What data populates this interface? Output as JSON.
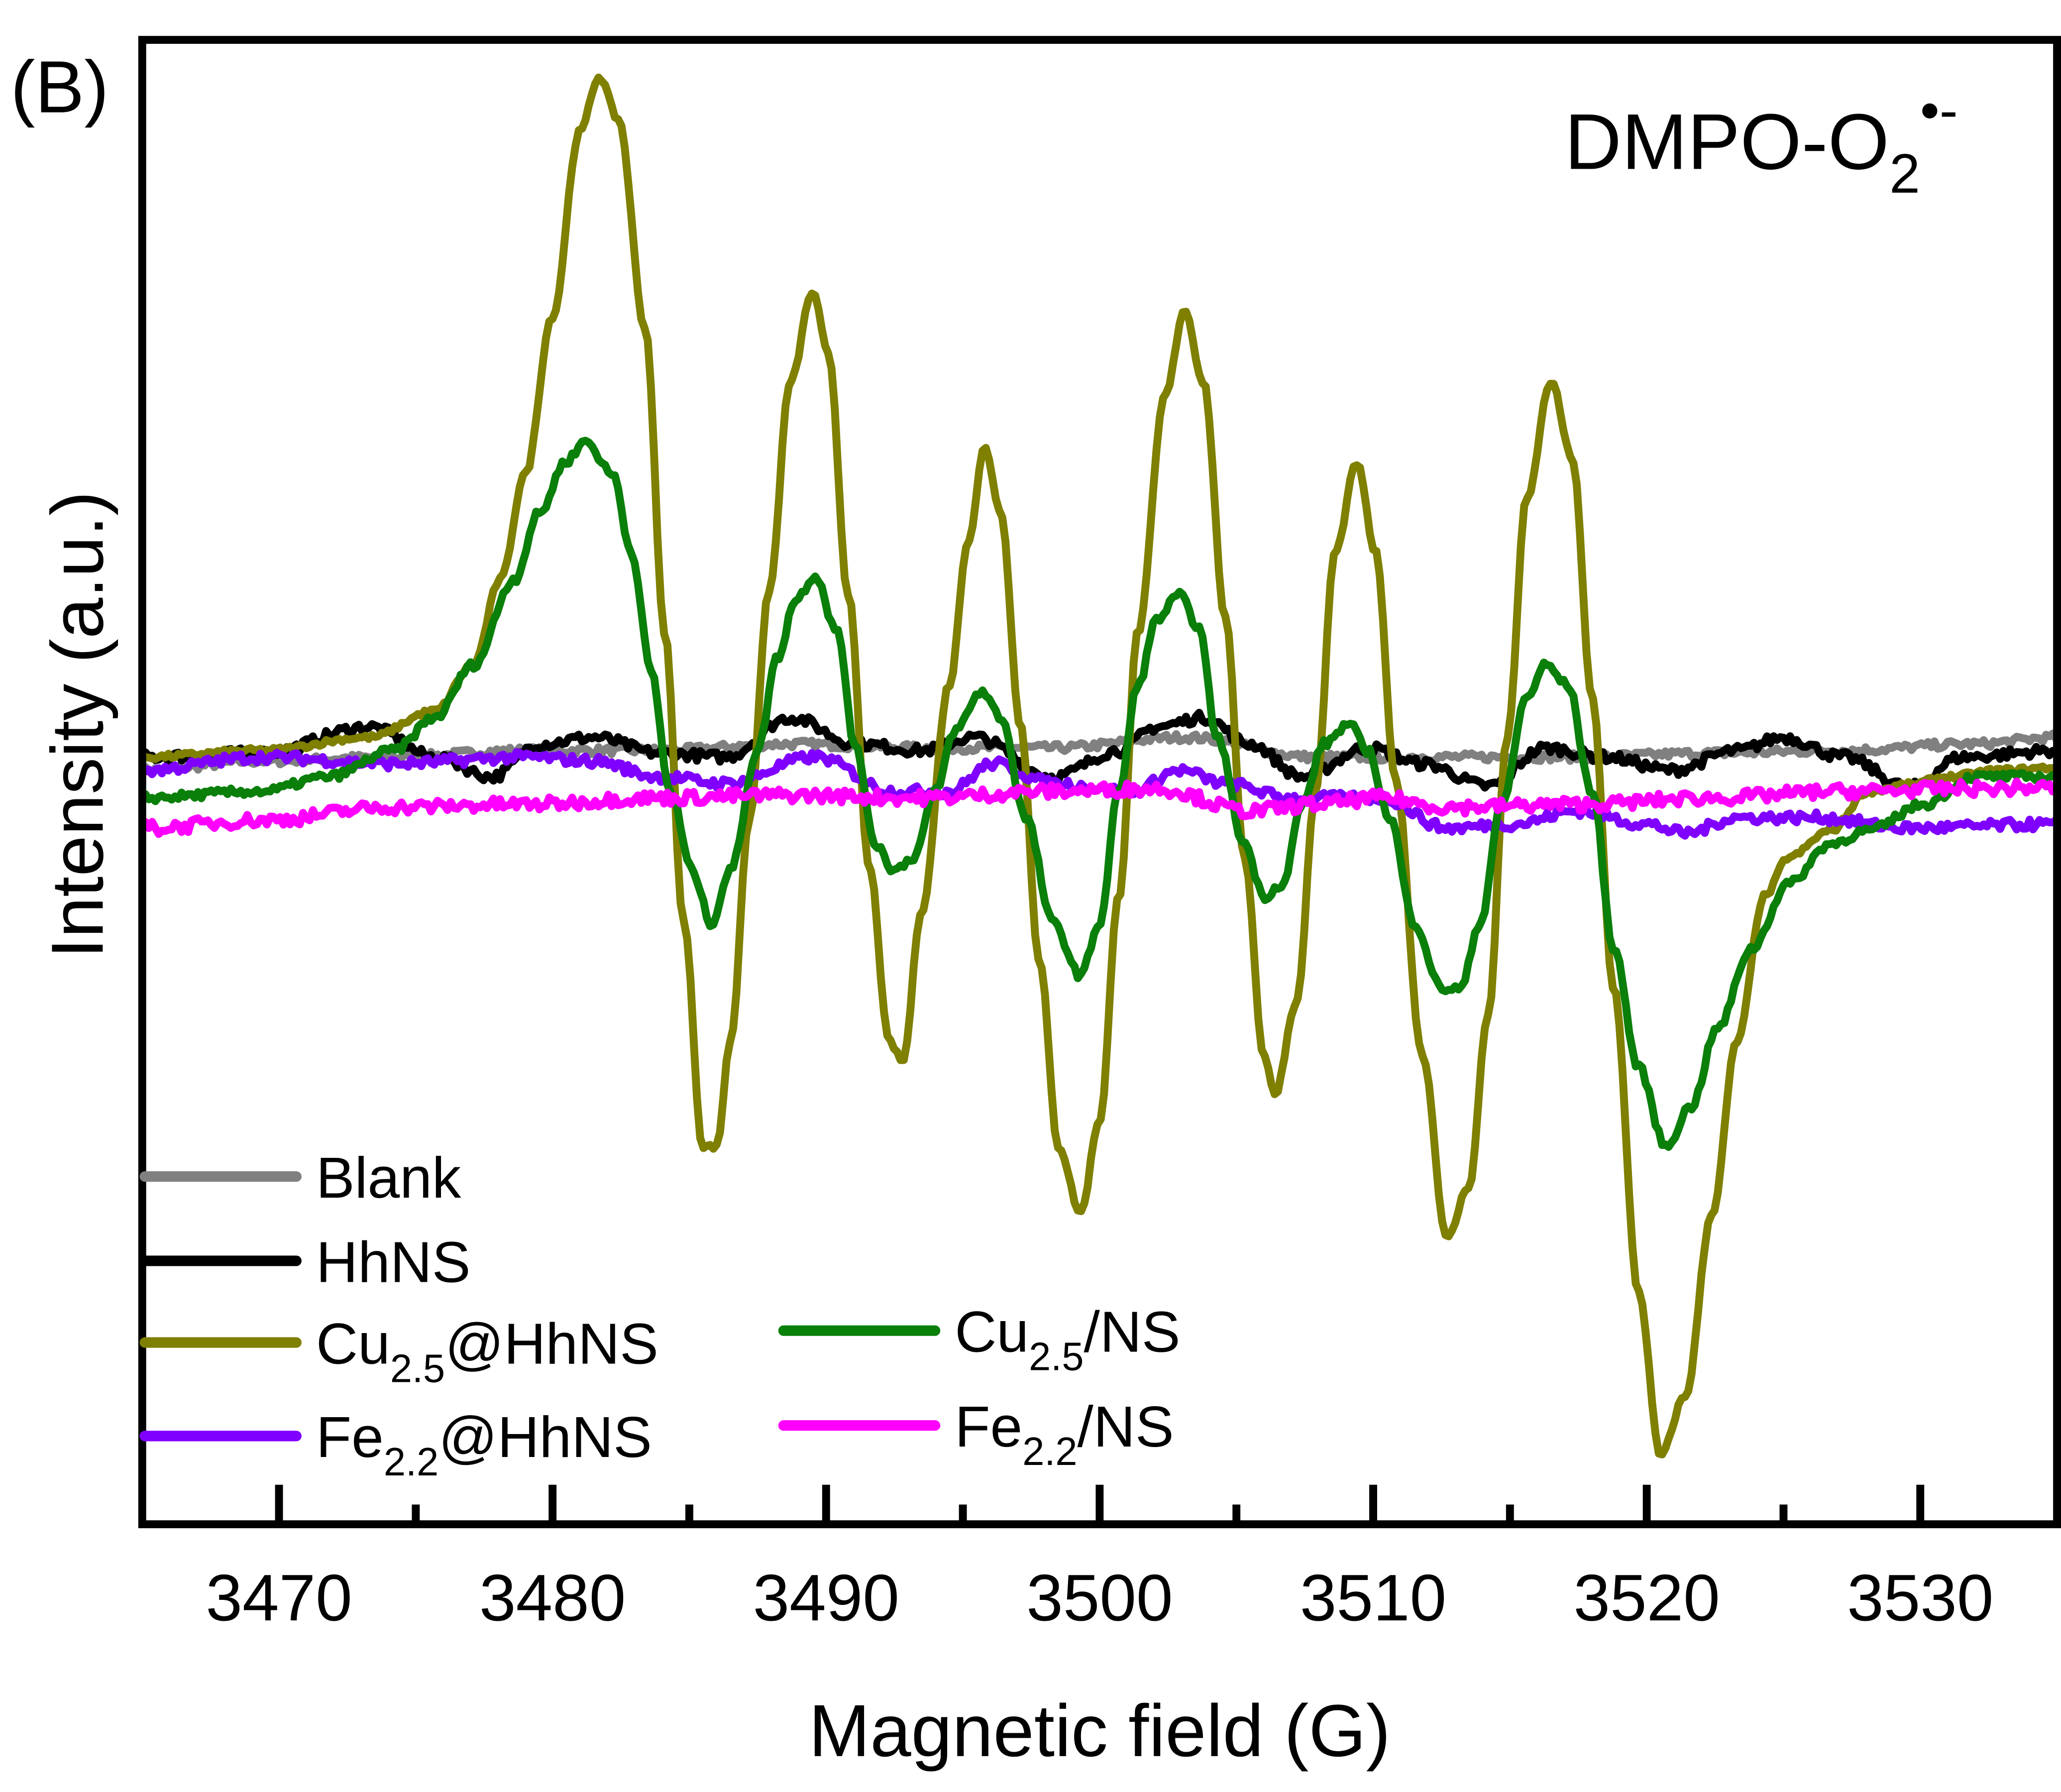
{
  "panel_label": "(B)",
  "chart_data": {
    "type": "line",
    "title": "",
    "annotation": {
      "main": "DMPO-O",
      "sub": "2",
      "sup": "•-"
    },
    "xlabel": "Magnetic field (G)",
    "ylabel": "Intensity (a.u.)",
    "xlim": [
      3465,
      3535
    ],
    "ylim": [
      -5.64,
      5.64
    ],
    "xticks": [
      3470,
      3480,
      3490,
      3500,
      3510,
      3520,
      3530
    ],
    "xtick_labels": [
      "3470",
      "3480",
      "3490",
      "3500",
      "3510",
      "3520",
      "3530"
    ],
    "minor_xticks": [
      3475,
      3485,
      3495,
      3505,
      3515,
      3525
    ],
    "yticks_shown": false,
    "grid": false,
    "legend_placement": "bottom-left",
    "series": [
      {
        "name": "Blank",
        "label": {
          "main": "Blank",
          "sub": "",
          "tail": ""
        },
        "color": "#808080",
        "noise": 0.03,
        "points": [
          [
            3465.0,
            0.09
          ],
          [
            3469.4,
            0.16
          ],
          [
            3474.2,
            0.19
          ],
          [
            3479.0,
            0.24
          ],
          [
            3483.8,
            0.24
          ],
          [
            3488.7,
            0.29
          ],
          [
            3493.5,
            0.26
          ],
          [
            3498.3,
            0.26
          ],
          [
            3503.1,
            0.34
          ],
          [
            3507.9,
            0.19
          ],
          [
            3512.7,
            0.19
          ],
          [
            3517.5,
            0.19
          ],
          [
            3522.4,
            0.22
          ],
          [
            3527.2,
            0.24
          ],
          [
            3532.0,
            0.29
          ],
          [
            3535.0,
            0.34
          ]
        ]
      },
      {
        "name": "HhNS",
        "label": {
          "main": "HhNS",
          "sub": "",
          "tail": ""
        },
        "color": "#000000",
        "noise": 0.04,
        "points": [
          [
            3465.0,
            0.19
          ],
          [
            3469.4,
            0.22
          ],
          [
            3473.3,
            0.42
          ],
          [
            3475.7,
            0.19
          ],
          [
            3477.8,
            0.04
          ],
          [
            3479.5,
            0.29
          ],
          [
            3481.5,
            0.34
          ],
          [
            3483.9,
            0.22
          ],
          [
            3486.3,
            0.19
          ],
          [
            3488.7,
            0.49
          ],
          [
            3491.1,
            0.29
          ],
          [
            3493.5,
            0.24
          ],
          [
            3495.4,
            0.34
          ],
          [
            3498.3,
            0.04
          ],
          [
            3500.7,
            0.24
          ],
          [
            3502.1,
            0.42
          ],
          [
            3503.8,
            0.49
          ],
          [
            3505.5,
            0.29
          ],
          [
            3507.4,
            0.04
          ],
          [
            3509.8,
            0.26
          ],
          [
            3511.8,
            0.14
          ],
          [
            3514.2,
            -0.03
          ],
          [
            3516.3,
            0.26
          ],
          [
            3518.5,
            0.19
          ],
          [
            3520.9,
            0.09
          ],
          [
            3523.3,
            0.24
          ],
          [
            3525.0,
            0.34
          ],
          [
            3527.2,
            0.19
          ],
          [
            3529.6,
            -0.04
          ],
          [
            3531.5,
            0.19
          ],
          [
            3535.0,
            0.24
          ]
        ]
      },
      {
        "name": "Cu2.5@HhNS",
        "label": {
          "main": "Cu",
          "sub": "2.5",
          "tail": "@HhNS"
        },
        "color": "#7f7f00",
        "noise": 0.02,
        "points": [
          [
            3465.0,
            0.19
          ],
          [
            3469.4,
            0.24
          ],
          [
            3473.3,
            0.34
          ],
          [
            3475.7,
            0.54
          ],
          [
            3477.1,
            0.89
          ],
          [
            3478.1,
            1.54
          ],
          [
            3479.0,
            2.34
          ],
          [
            3480.0,
            3.54
          ],
          [
            3481.0,
            4.94
          ],
          [
            3481.7,
            5.36
          ],
          [
            3482.4,
            5.04
          ],
          [
            3483.4,
            3.44
          ],
          [
            3484.1,
            1.14
          ],
          [
            3484.8,
            -1.07
          ],
          [
            3485.5,
            -2.77
          ],
          [
            3486.0,
            -2.77
          ],
          [
            3486.5,
            -1.97
          ],
          [
            3487.2,
            -0.27
          ],
          [
            3487.9,
            1.44
          ],
          [
            3488.7,
            3.04
          ],
          [
            3489.5,
            3.72
          ],
          [
            3490.1,
            3.24
          ],
          [
            3490.8,
            1.44
          ],
          [
            3491.6,
            -0.67
          ],
          [
            3492.3,
            -1.97
          ],
          [
            3492.8,
            -2.12
          ],
          [
            3493.5,
            -0.97
          ],
          [
            3494.5,
            0.74
          ],
          [
            3495.2,
            1.84
          ],
          [
            3495.8,
            2.54
          ],
          [
            3496.4,
            2.04
          ],
          [
            3497.1,
            0.44
          ],
          [
            3497.8,
            -1.37
          ],
          [
            3498.5,
            -2.77
          ],
          [
            3499.3,
            -3.27
          ],
          [
            3500.0,
            -2.57
          ],
          [
            3500.7,
            -0.87
          ],
          [
            3501.4,
            1.14
          ],
          [
            3502.4,
            2.94
          ],
          [
            3503.1,
            3.59
          ],
          [
            3503.8,
            3.04
          ],
          [
            3504.6,
            1.24
          ],
          [
            3505.3,
            -0.57
          ],
          [
            3506.0,
            -2.07
          ],
          [
            3506.4,
            -2.37
          ],
          [
            3507.2,
            -1.67
          ],
          [
            3507.9,
            -0.07
          ],
          [
            3508.6,
            1.74
          ],
          [
            3509.4,
            2.42
          ],
          [
            3510.1,
            1.74
          ],
          [
            3510.8,
            0.04
          ],
          [
            3511.8,
            -2.07
          ],
          [
            3512.7,
            -3.47
          ],
          [
            3513.5,
            -3.07
          ],
          [
            3514.2,
            -1.77
          ],
          [
            3514.9,
            0.34
          ],
          [
            3515.6,
            2.14
          ],
          [
            3516.5,
            3.04
          ],
          [
            3517.3,
            2.44
          ],
          [
            3518.0,
            0.64
          ],
          [
            3518.8,
            -1.57
          ],
          [
            3519.7,
            -3.87
          ],
          [
            3520.5,
            -5.12
          ],
          [
            3521.4,
            -4.67
          ],
          [
            3522.4,
            -3.27
          ],
          [
            3523.3,
            -1.97
          ],
          [
            3524.3,
            -0.87
          ],
          [
            3525.2,
            -0.57
          ],
          [
            3526.7,
            -0.37
          ],
          [
            3528.1,
            -0.07
          ],
          [
            3529.6,
            -0.02
          ],
          [
            3531.0,
            0.04
          ],
          [
            3533.0,
            0.09
          ],
          [
            3535.0,
            0.11
          ]
        ]
      },
      {
        "name": "Fe2.2@HhNS",
        "label": {
          "main": "Fe",
          "sub": "2.2",
          "tail": "@HhNS"
        },
        "color": "#8000ff",
        "noise": 0.04,
        "points": [
          [
            3465.0,
            0.09
          ],
          [
            3469.4,
            0.19
          ],
          [
            3474.2,
            0.14
          ],
          [
            3479.0,
            0.19
          ],
          [
            3481.5,
            0.16
          ],
          [
            3483.9,
            0.04
          ],
          [
            3486.3,
            -0.01
          ],
          [
            3489.6,
            0.19
          ],
          [
            3492.5,
            -0.07
          ],
          [
            3494.5,
            -0.07
          ],
          [
            3496.1,
            0.14
          ],
          [
            3498.3,
            -0.01
          ],
          [
            3501.2,
            -0.07
          ],
          [
            3502.9,
            0.09
          ],
          [
            3504.6,
            -0.01
          ],
          [
            3507.0,
            -0.12
          ],
          [
            3510.3,
            -0.12
          ],
          [
            3512.7,
            -0.35
          ],
          [
            3515.1,
            -0.32
          ],
          [
            3517.5,
            -0.22
          ],
          [
            3520.0,
            -0.32
          ],
          [
            3521.4,
            -0.39
          ],
          [
            3523.3,
            -0.27
          ],
          [
            3526.2,
            -0.27
          ],
          [
            3529.6,
            -0.35
          ],
          [
            3535.0,
            -0.32
          ]
        ]
      },
      {
        "name": "Cu2.5/NS",
        "label": {
          "main": "Cu",
          "sub": "2.5",
          "tail": "/NS"
        },
        "color": "#0a7f0a",
        "noise": 0.03,
        "points": [
          [
            3465.0,
            -0.12
          ],
          [
            3469.4,
            -0.07
          ],
          [
            3471.8,
            0.04
          ],
          [
            3474.2,
            0.24
          ],
          [
            3475.7,
            0.49
          ],
          [
            3477.1,
            0.89
          ],
          [
            3478.6,
            1.54
          ],
          [
            3479.5,
            2.04
          ],
          [
            3480.5,
            2.44
          ],
          [
            3481.2,
            2.59
          ],
          [
            3482.2,
            2.34
          ],
          [
            3482.9,
            1.74
          ],
          [
            3483.6,
            0.84
          ],
          [
            3484.3,
            -0.07
          ],
          [
            3485.1,
            -0.67
          ],
          [
            3485.8,
            -1.07
          ],
          [
            3486.5,
            -0.67
          ],
          [
            3487.5,
            0.24
          ],
          [
            3488.2,
            0.94
          ],
          [
            3488.9,
            1.39
          ],
          [
            3489.6,
            1.57
          ],
          [
            3490.4,
            1.14
          ],
          [
            3491.1,
            0.24
          ],
          [
            3491.8,
            -0.47
          ],
          [
            3492.5,
            -0.67
          ],
          [
            3493.2,
            -0.57
          ],
          [
            3494.0,
            -0.07
          ],
          [
            3494.7,
            0.39
          ],
          [
            3495.7,
            0.69
          ],
          [
            3496.4,
            0.49
          ],
          [
            3497.3,
            -0.27
          ],
          [
            3498.3,
            -1.07
          ],
          [
            3499.3,
            -1.47
          ],
          [
            3500.0,
            -1.07
          ],
          [
            3500.7,
            -0.07
          ],
          [
            3501.4,
            0.74
          ],
          [
            3502.1,
            1.24
          ],
          [
            3502.9,
            1.42
          ],
          [
            3503.6,
            1.19
          ],
          [
            3504.3,
            0.34
          ],
          [
            3505.3,
            -0.47
          ],
          [
            3506.0,
            -0.87
          ],
          [
            3506.7,
            -0.77
          ],
          [
            3507.4,
            -0.17
          ],
          [
            3508.2,
            0.29
          ],
          [
            3509.1,
            0.44
          ],
          [
            3509.8,
            0.24
          ],
          [
            3510.6,
            -0.27
          ],
          [
            3511.5,
            -1.07
          ],
          [
            3512.5,
            -1.57
          ],
          [
            3513.2,
            -1.57
          ],
          [
            3513.9,
            -1.07
          ],
          [
            3514.7,
            -0.17
          ],
          [
            3515.6,
            0.64
          ],
          [
            3516.3,
            0.89
          ],
          [
            3517.1,
            0.74
          ],
          [
            3518.0,
            -0.07
          ],
          [
            3518.8,
            -1.27
          ],
          [
            3519.7,
            -2.17
          ],
          [
            3520.7,
            -2.77
          ],
          [
            3521.6,
            -2.47
          ],
          [
            3522.6,
            -1.87
          ],
          [
            3523.8,
            -1.27
          ],
          [
            3525.2,
            -0.77
          ],
          [
            3526.7,
            -0.47
          ],
          [
            3528.1,
            -0.37
          ],
          [
            3530.1,
            -0.17
          ],
          [
            3532.0,
            0.04
          ],
          [
            3535.0,
            0.04
          ]
        ]
      },
      {
        "name": "Fe2.2/NS",
        "label": {
          "main": "Fe",
          "sub": "2.2",
          "tail": "/NS"
        },
        "color": "#ff00ff",
        "noise": 0.05,
        "points": [
          [
            3465.0,
            -0.35
          ],
          [
            3469.4,
            -0.29
          ],
          [
            3474.2,
            -0.19
          ],
          [
            3479.0,
            -0.17
          ],
          [
            3483.8,
            -0.12
          ],
          [
            3488.7,
            -0.1
          ],
          [
            3493.5,
            -0.12
          ],
          [
            3498.3,
            -0.07
          ],
          [
            3502.1,
            -0.05
          ],
          [
            3505.5,
            -0.22
          ],
          [
            3507.9,
            -0.17
          ],
          [
            3510.3,
            -0.12
          ],
          [
            3512.7,
            -0.19
          ],
          [
            3517.5,
            -0.17
          ],
          [
            3522.4,
            -0.12
          ],
          [
            3527.2,
            -0.07
          ],
          [
            3532.0,
            -0.05
          ],
          [
            3535.0,
            -0.04
          ]
        ]
      }
    ]
  }
}
